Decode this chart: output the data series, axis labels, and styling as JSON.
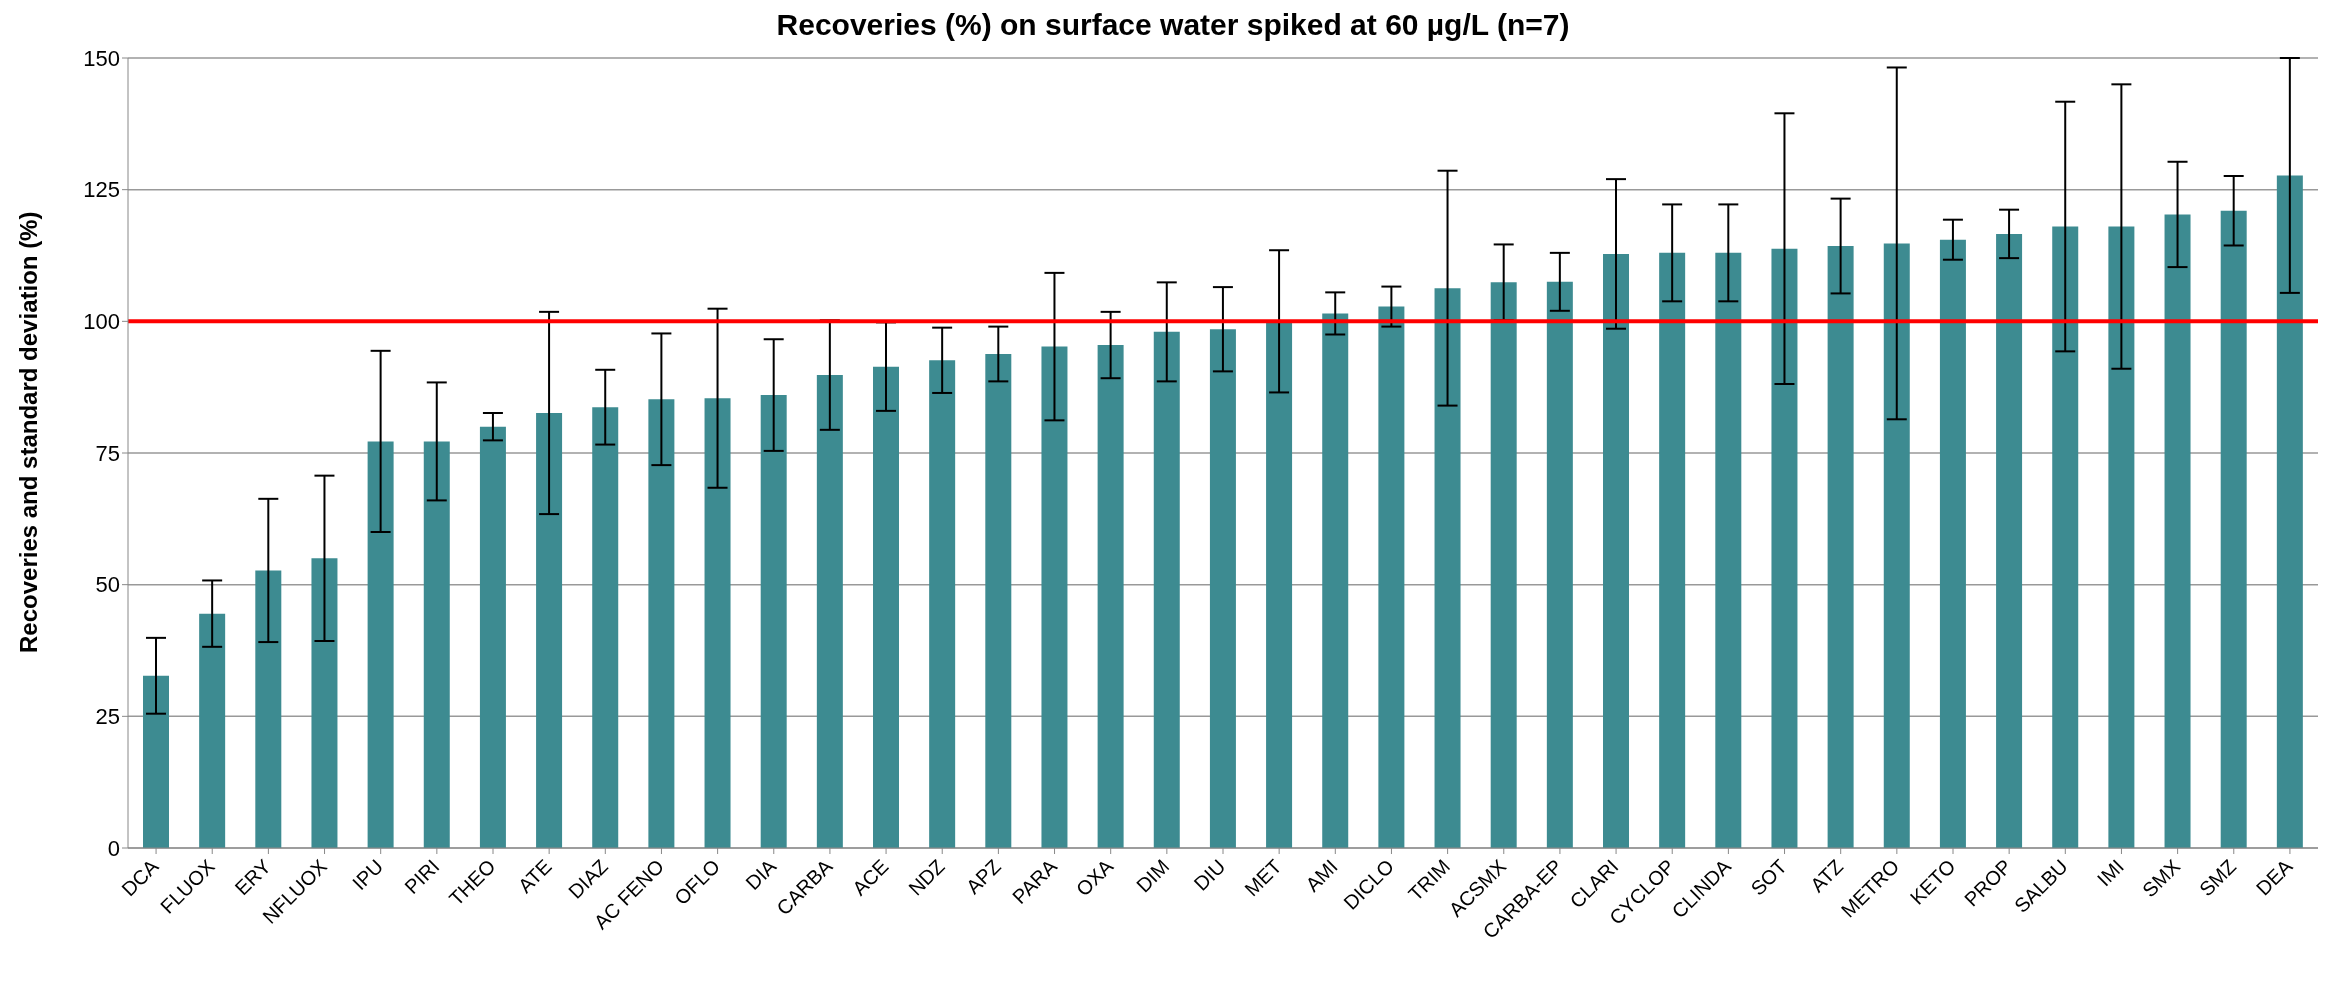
{
  "chart_data": {
    "type": "bar",
    "title": "Recoveries (%) on surface water spiked at 60 µg/L (n=7)",
    "ylabel": "Recoveries and standard deviation (%)",
    "categories": [
      "DCA",
      "FLUOX",
      "ERY",
      "NFLUOX",
      "IPU",
      "PIRI",
      "THEO",
      "ATE",
      "DIAZ",
      "AC FENO",
      "OFLO",
      "DIA",
      "CARBA",
      "ACE",
      "NDZ",
      "APZ",
      "PARA",
      "OXA",
      "DIM",
      "DIU",
      "MET",
      "AMI",
      "DICLO",
      "TRIM",
      "ACSMX",
      "CARBA-EP",
      "CLARI",
      "CYCLOP",
      "CLINDA",
      "SOT",
      "ATZ",
      "METRO",
      "KETO",
      "PROP",
      "SALBU",
      "IMI",
      "SMX",
      "SMZ",
      "DEA"
    ],
    "values": [
      32.7,
      44.5,
      52.7,
      55,
      77.2,
      77.2,
      80,
      82.6,
      83.7,
      85.2,
      85.4,
      86,
      89.8,
      91.4,
      92.6,
      93.8,
      95.2,
      95.5,
      98,
      98.5,
      100,
      101.5,
      102.8,
      106.3,
      107.4,
      107.5,
      112.8,
      113,
      113,
      113.8,
      114.3,
      114.8,
      115.5,
      116.6,
      118,
      118,
      120.3,
      121,
      127.7
    ],
    "errors": [
      7.2,
      6.3,
      13.6,
      15.7,
      17.2,
      11.2,
      2.6,
      19.2,
      7.1,
      12.5,
      17,
      10.6,
      10.4,
      8.4,
      6.2,
      5.2,
      14,
      6.3,
      9.4,
      8,
      13.5,
      4,
      3.8,
      22.3,
      7.2,
      5.5,
      14.2,
      9.2,
      9.2,
      25.7,
      9,
      33.4,
      3.8,
      4.6,
      23.7,
      27,
      10,
      6.6,
      22.3
    ],
    "color": "#3d8b91",
    "ylim": [
      0,
      150
    ],
    "yticks": [
      0,
      25,
      50,
      75,
      100,
      125,
      150
    ],
    "grid": "y",
    "ref_lines": [
      {
        "axis": "y",
        "value": 100,
        "color": "#ff0000"
      }
    ]
  }
}
